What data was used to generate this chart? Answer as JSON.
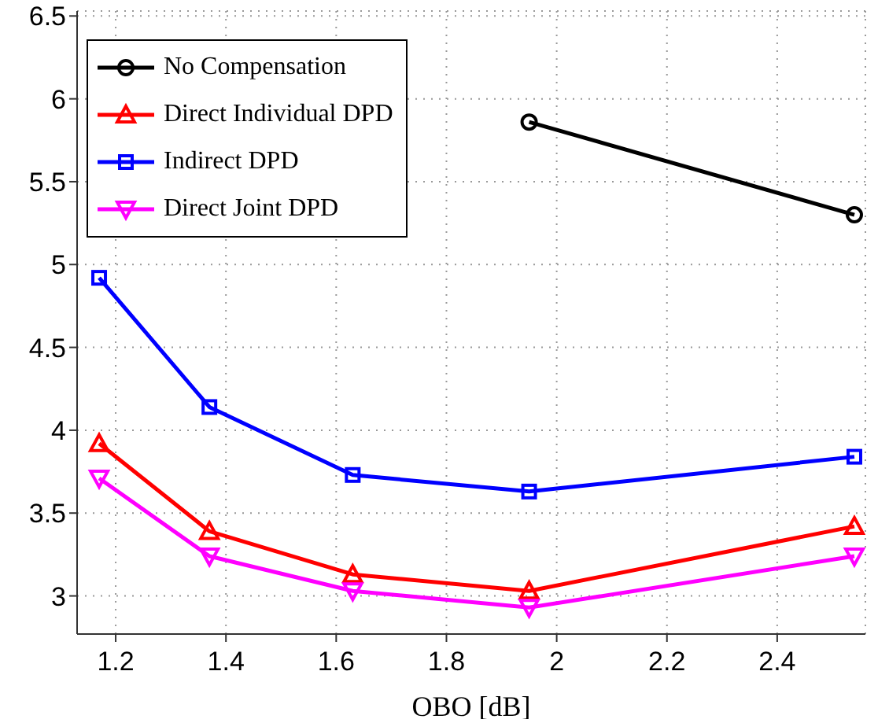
{
  "chart_data": {
    "type": "line",
    "xlabel": "OBO [dB]",
    "x": [
      1.17,
      1.37,
      1.63,
      1.95,
      2.54
    ],
    "series": [
      {
        "name": "No Compensation",
        "color": "#000000",
        "marker": "circle",
        "values": [
          null,
          null,
          null,
          5.86,
          5.3
        ]
      },
      {
        "name": "Direct Individual DPD",
        "color": "#ff0000",
        "marker": "triangle",
        "values": [
          3.92,
          3.39,
          3.13,
          3.03,
          3.42
        ]
      },
      {
        "name": "Indirect DPD",
        "color": "#0000ff",
        "marker": "square",
        "values": [
          4.92,
          4.14,
          3.73,
          3.63,
          3.84
        ]
      },
      {
        "name": "Direct Joint DPD",
        "color": "#ff00ff",
        "marker": "triangle-down",
        "values": [
          3.71,
          3.24,
          3.03,
          2.93,
          3.24
        ]
      }
    ],
    "xlim": [
      1.13,
      2.56
    ],
    "xticks": [
      1.2,
      1.4,
      1.6,
      1.8,
      2,
      2.2,
      2.4
    ],
    "ylim": [
      2.77,
      6.53
    ],
    "yticks": [
      3,
      3.5,
      4,
      4.5,
      5,
      5.5,
      6,
      6.5
    ],
    "grid": true,
    "legend": "top left",
    "line_style": "solid"
  }
}
